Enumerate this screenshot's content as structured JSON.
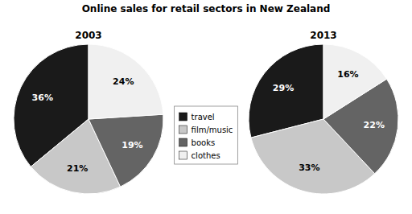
{
  "chart_data": {
    "type": "pie",
    "title": "Online sales for retail sectors in New Zealand",
    "categories": [
      "travel",
      "film/music",
      "books",
      "clothes"
    ],
    "colors": [
      "#1a1a1a",
      "#c8c8c8",
      "#646464",
      "#f0f0f0"
    ],
    "series": [
      {
        "name": "2003",
        "values": [
          36,
          21,
          19,
          24
        ],
        "value_labels": [
          "36%",
          "21%",
          "19%",
          "24%"
        ]
      },
      {
        "name": "2013",
        "values": [
          29,
          33,
          22,
          16
        ],
        "value_labels": [
          "29%",
          "33%",
          "22%",
          "16%"
        ]
      }
    ],
    "data_labels": true,
    "legend": "center"
  }
}
